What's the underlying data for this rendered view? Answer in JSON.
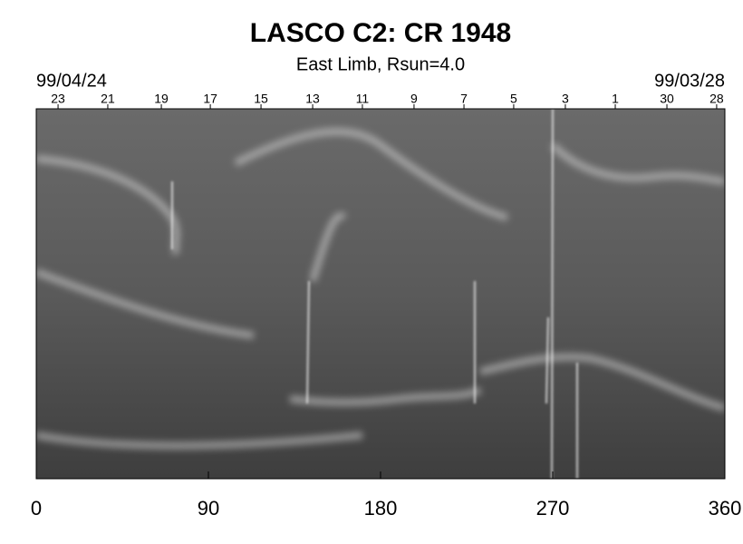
{
  "chart_data": {
    "type": "synoptic-map",
    "title": "LASCO C2: CR 1948",
    "subtitle": "East Limb, Rsun=4.0",
    "start_date": "99/04/24",
    "end_date": "99/03/28",
    "xlim": [
      0,
      360
    ],
    "xticks": [
      0,
      90,
      180,
      270,
      360
    ],
    "x2ticks": [
      {
        "value": 11.4,
        "label": "23"
      },
      {
        "value": 37.4,
        "label": "21"
      },
      {
        "value": 65.4,
        "label": "19"
      },
      {
        "value": 91,
        "label": "17"
      },
      {
        "value": 117.5,
        "label": "15"
      },
      {
        "value": 144.5,
        "label": "13"
      },
      {
        "value": 170.5,
        "label": "11"
      },
      {
        "value": 197.5,
        "label": "9"
      },
      {
        "value": 223.6,
        "label": "7"
      },
      {
        "value": 249.6,
        "label": "5"
      },
      {
        "value": 276.6,
        "label": "3"
      },
      {
        "value": 302.7,
        "label": "1"
      },
      {
        "value": 329.7,
        "label": "30"
      },
      {
        "value": 355.7,
        "label": "28"
      }
    ]
  }
}
